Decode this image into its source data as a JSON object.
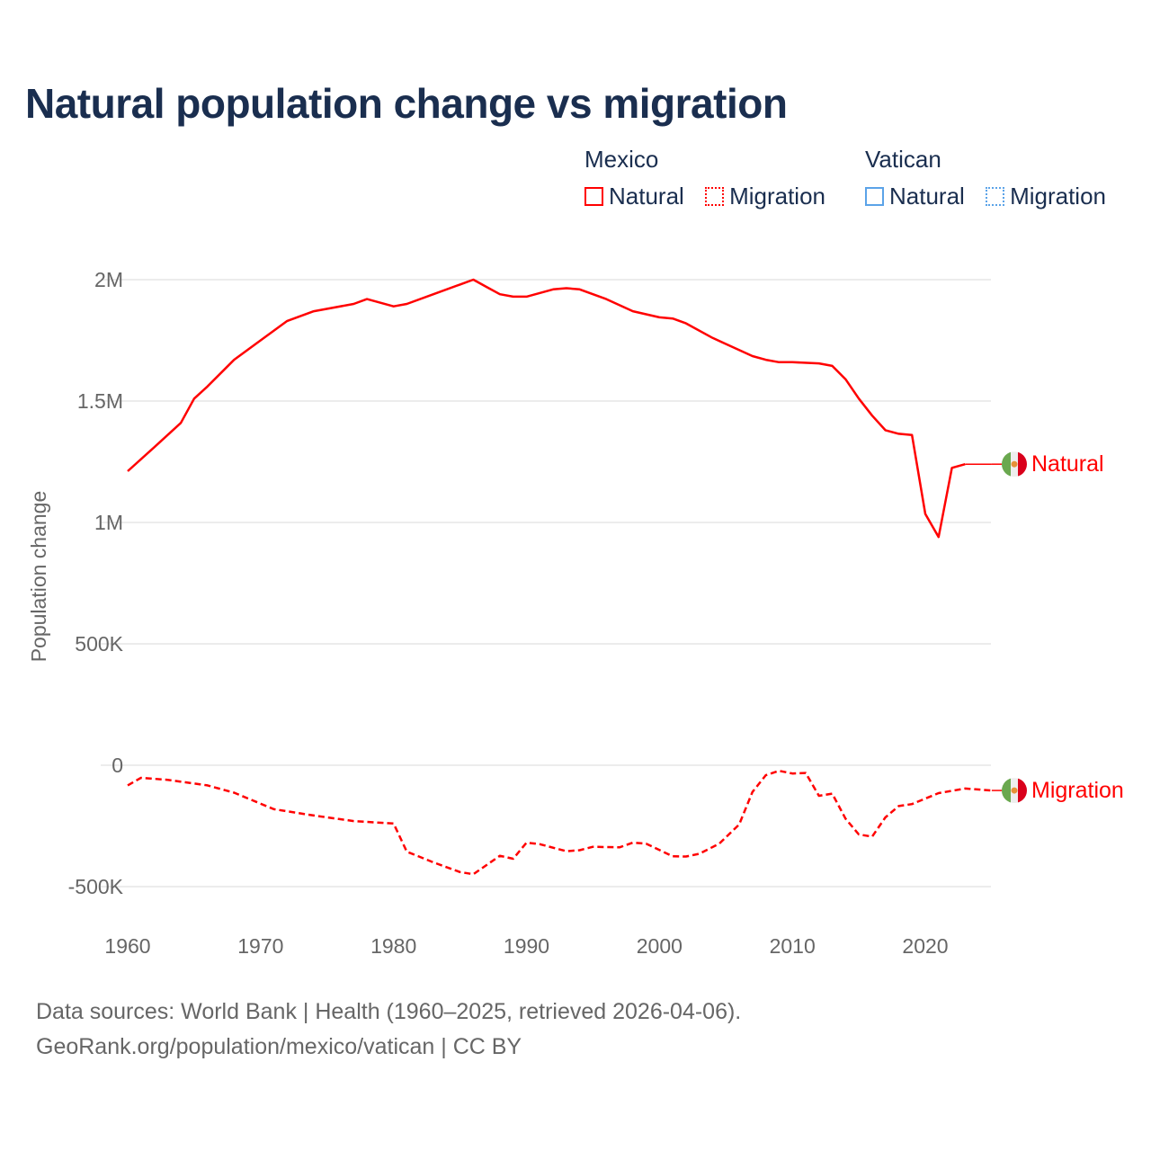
{
  "chart_data": {
    "type": "line",
    "title": "Natural population change vs migration",
    "xlabel": "",
    "ylabel": "Population change",
    "xlim": [
      1960,
      2025
    ],
    "ylim": [
      -500000,
      2000000
    ],
    "x_ticks": [
      1960,
      1970,
      1980,
      1990,
      2000,
      2010,
      2020
    ],
    "x_tick_labels": [
      "1960",
      "1970",
      "1980",
      "1990",
      "2000",
      "2010",
      "2020"
    ],
    "y_ticks": [
      -500000,
      0,
      500000,
      1000000,
      1500000,
      2000000
    ],
    "y_tick_labels": [
      "-500K",
      "0",
      "500K",
      "1M",
      "1.5M",
      "2M"
    ],
    "grid": true,
    "legend": {
      "placement": "top-right",
      "groups": [
        {
          "title": "Mexico",
          "items": [
            {
              "label": "Natural",
              "style": "solid",
              "color": "#ff0000"
            },
            {
              "label": "Migration",
              "style": "dotted",
              "color": "#ff0000"
            }
          ]
        },
        {
          "title": "Vatican",
          "items": [
            {
              "label": "Natural",
              "style": "solid",
              "color": "#5ba3e8"
            },
            {
              "label": "Migration",
              "style": "dotted",
              "color": "#5ba3e8"
            }
          ]
        }
      ]
    },
    "series": [
      {
        "name": "Mexico Natural",
        "end_label": "Natural",
        "color": "#ff0000",
        "dash": false,
        "points": [
          [
            1960,
            1211000
          ],
          [
            1962,
            1310000
          ],
          [
            1964,
            1410000
          ],
          [
            1965,
            1510000
          ],
          [
            1966,
            1560000
          ],
          [
            1968,
            1670000
          ],
          [
            1970,
            1750000
          ],
          [
            1972,
            1830000
          ],
          [
            1974,
            1870000
          ],
          [
            1977,
            1900000
          ],
          [
            1978,
            1920000
          ],
          [
            1980,
            1890000
          ],
          [
            1981,
            1900000
          ],
          [
            1983,
            1940000
          ],
          [
            1985,
            1980000
          ],
          [
            1986,
            2000000
          ],
          [
            1987,
            1970000
          ],
          [
            1988,
            1940000
          ],
          [
            1989,
            1930000
          ],
          [
            1990,
            1930000
          ],
          [
            1992,
            1960000
          ],
          [
            1993,
            1965000
          ],
          [
            1994,
            1960000
          ],
          [
            1996,
            1920000
          ],
          [
            1998,
            1870000
          ],
          [
            2000,
            1845000
          ],
          [
            2001,
            1840000
          ],
          [
            2002,
            1820000
          ],
          [
            2004,
            1760000
          ],
          [
            2006,
            1710000
          ],
          [
            2007,
            1685000
          ],
          [
            2008,
            1670000
          ],
          [
            2009,
            1660000
          ],
          [
            2010,
            1660000
          ],
          [
            2012,
            1655000
          ],
          [
            2013,
            1645000
          ],
          [
            2014,
            1590000
          ],
          [
            2015,
            1510000
          ],
          [
            2016,
            1440000
          ],
          [
            2017,
            1380000
          ],
          [
            2018,
            1365000
          ],
          [
            2019,
            1360000
          ],
          [
            2020,
            1035000
          ],
          [
            2021,
            940000
          ],
          [
            2022,
            1225000
          ],
          [
            2023,
            1240000
          ]
        ],
        "extend_to": [
          2025,
          1240000
        ]
      },
      {
        "name": "Mexico Migration",
        "end_label": "Migration",
        "color": "#ff0000",
        "dash": true,
        "points": [
          [
            1960,
            -83000
          ],
          [
            1961,
            -52000
          ],
          [
            1963,
            -60000
          ],
          [
            1966,
            -83000
          ],
          [
            1968,
            -113000
          ],
          [
            1971,
            -181000
          ],
          [
            1974,
            -207000
          ],
          [
            1977,
            -230000
          ],
          [
            1980,
            -240000
          ],
          [
            1981,
            -356000
          ],
          [
            1983,
            -400000
          ],
          [
            1985,
            -440000
          ],
          [
            1986,
            -449000
          ],
          [
            1988,
            -373000
          ],
          [
            1989,
            -385000
          ],
          [
            1990,
            -319000
          ],
          [
            1991,
            -325000
          ],
          [
            1993,
            -354000
          ],
          [
            1994,
            -350000
          ],
          [
            1995,
            -336000
          ],
          [
            1997,
            -338000
          ],
          [
            1998,
            -319000
          ],
          [
            1999,
            -323000
          ],
          [
            2001,
            -375000
          ],
          [
            2002,
            -376000
          ],
          [
            2003,
            -365000
          ],
          [
            2004.5,
            -323000
          ],
          [
            2006,
            -244000
          ],
          [
            2007,
            -110000
          ],
          [
            2008,
            -41000
          ],
          [
            2009,
            -23000
          ],
          [
            2010,
            -34000
          ],
          [
            2011,
            -32000
          ],
          [
            2012,
            -126000
          ],
          [
            2013,
            -117000
          ],
          [
            2014,
            -220000
          ],
          [
            2015,
            -285000
          ],
          [
            2016,
            -294000
          ],
          [
            2017,
            -215000
          ],
          [
            2018,
            -168000
          ],
          [
            2019,
            -160000
          ],
          [
            2021,
            -115000
          ],
          [
            2023,
            -96000
          ],
          [
            2025,
            -104000
          ]
        ]
      },
      {
        "name": "Vatican Natural",
        "color": "#5ba3e8",
        "dash": false,
        "points": []
      },
      {
        "name": "Vatican Migration",
        "color": "#5ba3e8",
        "dash": true,
        "points": []
      }
    ]
  },
  "footer": {
    "line1": "Data sources: World Bank | Health (1960–2025, retrieved 2026-04-06).",
    "line2": "GeoRank.org/population/mexico/vatican | CC BY"
  }
}
